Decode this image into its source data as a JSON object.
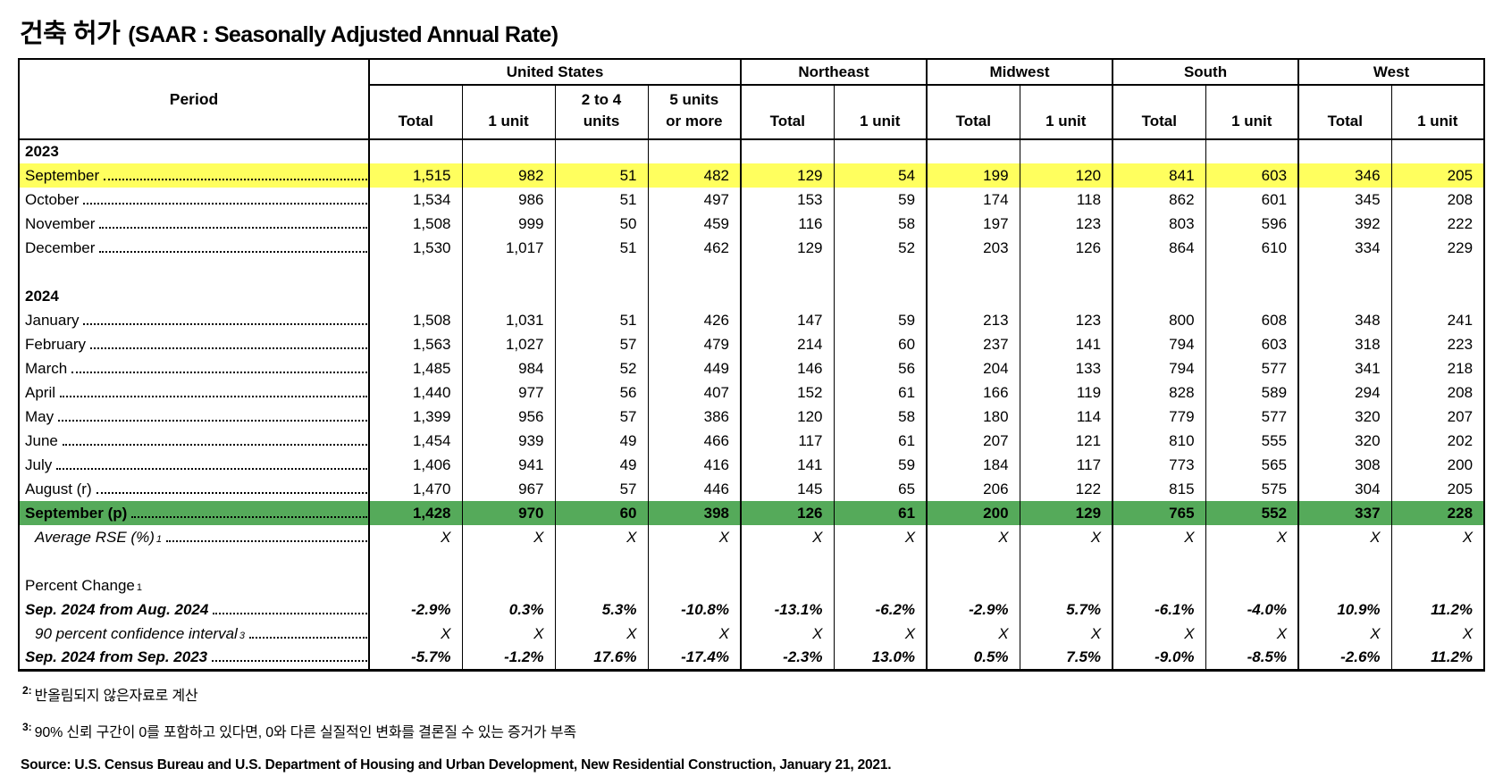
{
  "title": {
    "korean": "건축 허가",
    "english": "(SAAR : Seasonally Adjusted Annual Rate)"
  },
  "colors": {
    "highlight_yellow": "#FFFF5E",
    "highlight_green": "#55AA5A"
  },
  "table": {
    "period_header": "Period",
    "groups": [
      "United States",
      "Northeast",
      "Midwest",
      "South",
      "West"
    ],
    "subheaders": [
      "Total",
      "1 unit",
      "2 to 4\nunits",
      "5 units\nor more",
      "Total",
      "1 unit",
      "Total",
      "1 unit",
      "Total",
      "1 unit",
      "Total",
      "1 unit"
    ],
    "rows": [
      {
        "type": "year",
        "label": "2023"
      },
      {
        "type": "data",
        "label": "September",
        "leader": true,
        "highlight": "yellow",
        "values": [
          "1,515",
          "982",
          "51",
          "482",
          "129",
          "54",
          "199",
          "120",
          "841",
          "603",
          "346",
          "205"
        ]
      },
      {
        "type": "data",
        "label": "October",
        "leader": true,
        "values": [
          "1,534",
          "986",
          "51",
          "497",
          "153",
          "59",
          "174",
          "118",
          "862",
          "601",
          "345",
          "208"
        ]
      },
      {
        "type": "data",
        "label": "November",
        "leader": true,
        "values": [
          "1,508",
          "999",
          "50",
          "459",
          "116",
          "58",
          "197",
          "123",
          "803",
          "596",
          "392",
          "222"
        ]
      },
      {
        "type": "data",
        "label": "December",
        "leader": true,
        "values": [
          "1,530",
          "1,017",
          "51",
          "462",
          "129",
          "52",
          "203",
          "126",
          "864",
          "610",
          "334",
          "229"
        ]
      },
      {
        "type": "blank"
      },
      {
        "type": "year",
        "label": "2024"
      },
      {
        "type": "data",
        "label": "January",
        "leader": true,
        "values": [
          "1,508",
          "1,031",
          "51",
          "426",
          "147",
          "59",
          "213",
          "123",
          "800",
          "608",
          "348",
          "241"
        ]
      },
      {
        "type": "data",
        "label": "February",
        "leader": true,
        "values": [
          "1,563",
          "1,027",
          "57",
          "479",
          "214",
          "60",
          "237",
          "141",
          "794",
          "603",
          "318",
          "223"
        ]
      },
      {
        "type": "data",
        "label": "March",
        "leader": true,
        "values": [
          "1,485",
          "984",
          "52",
          "449",
          "146",
          "56",
          "204",
          "133",
          "794",
          "577",
          "341",
          "218"
        ]
      },
      {
        "type": "data",
        "label": "April",
        "leader": true,
        "values": [
          "1,440",
          "977",
          "56",
          "407",
          "152",
          "61",
          "166",
          "119",
          "828",
          "589",
          "294",
          "208"
        ]
      },
      {
        "type": "data",
        "label": "May",
        "leader": true,
        "values": [
          "1,399",
          "956",
          "57",
          "386",
          "120",
          "58",
          "180",
          "114",
          "779",
          "577",
          "320",
          "207"
        ]
      },
      {
        "type": "data",
        "label": "June",
        "leader": true,
        "values": [
          "1,454",
          "939",
          "49",
          "466",
          "117",
          "61",
          "207",
          "121",
          "810",
          "555",
          "320",
          "202"
        ]
      },
      {
        "type": "data",
        "label": "July",
        "leader": true,
        "values": [
          "1,406",
          "941",
          "49",
          "416",
          "141",
          "59",
          "184",
          "117",
          "773",
          "565",
          "308",
          "200"
        ]
      },
      {
        "type": "data",
        "label": "August (r)",
        "leader": true,
        "values": [
          "1,470",
          "967",
          "57",
          "446",
          "145",
          "65",
          "206",
          "122",
          "815",
          "575",
          "304",
          "205"
        ]
      },
      {
        "type": "data",
        "label": "September (p)",
        "leader": true,
        "highlight": "green",
        "style": "bold",
        "values": [
          "1,428",
          "970",
          "60",
          "398",
          "126",
          "61",
          "200",
          "129",
          "765",
          "552",
          "337",
          "228"
        ]
      },
      {
        "type": "data",
        "label": "Average RSE (%)",
        "sup": "1",
        "leader": true,
        "style": "italic",
        "indent": true,
        "values": [
          "X",
          "X",
          "X",
          "X",
          "X",
          "X",
          "X",
          "X",
          "X",
          "X",
          "X",
          "X"
        ]
      },
      {
        "type": "blank"
      },
      {
        "type": "section",
        "label": "Percent Change",
        "sup": "1"
      },
      {
        "type": "data",
        "label": "Sep. 2024 from Aug. 2024",
        "leader": true,
        "style": "bolditalic",
        "values": [
          "-2.9%",
          "0.3%",
          "5.3%",
          "-10.8%",
          "-13.1%",
          "-6.2%",
          "-2.9%",
          "5.7%",
          "-6.1%",
          "-4.0%",
          "10.9%",
          "11.2%"
        ]
      },
      {
        "type": "data",
        "label": "90 percent confidence interval",
        "sup": "3",
        "leader": true,
        "style": "italic",
        "indent": true,
        "values": [
          "X",
          "X",
          "X",
          "X",
          "X",
          "X",
          "X",
          "X",
          "X",
          "X",
          "X",
          "X"
        ]
      },
      {
        "type": "data",
        "label": "Sep. 2024 from Sep. 2023",
        "leader": true,
        "style": "bolditalic",
        "values": [
          "-5.7%",
          "-1.2%",
          "17.6%",
          "-17.4%",
          "-2.3%",
          "13.0%",
          "0.5%",
          "7.5%",
          "-9.0%",
          "-8.5%",
          "-2.6%",
          "11.2%"
        ]
      }
    ]
  },
  "footnotes": [
    {
      "marker": "2:",
      "text": "반올림되지 않은자료로 계산"
    },
    {
      "marker": "3:",
      "text": "90% 신뢰 구간이 0를 포함하고 있다면, 0와 다른 실질적인 변화를 결론질 수 있는 증거가 부족"
    }
  ],
  "source": "Source: U.S. Census Bureau and U.S. Department of Housing and Urban Development, New Residential Construction, January 21, 2021."
}
